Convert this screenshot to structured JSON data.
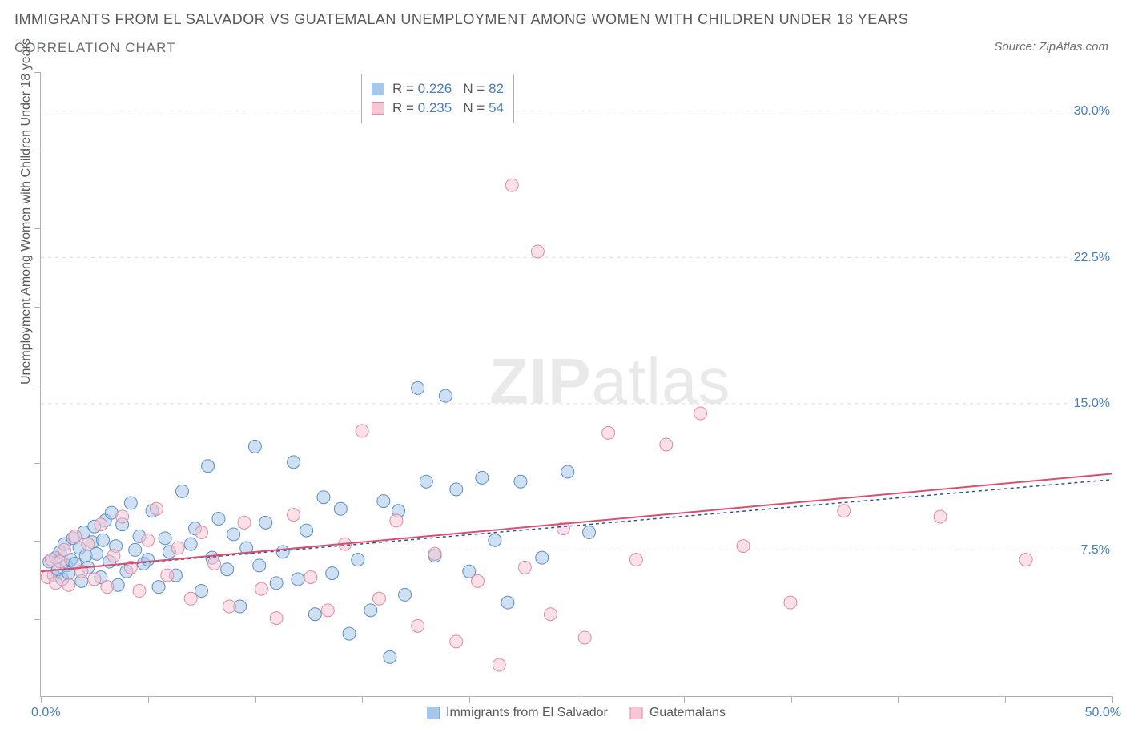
{
  "title_main": "IMMIGRANTS FROM EL SALVADOR VS GUATEMALAN UNEMPLOYMENT AMONG WOMEN WITH CHILDREN UNDER 18 YEARS",
  "title_sub": "CORRELATION CHART",
  "source_prefix": "Source: ",
  "source_name": "ZipAtlas.com",
  "y_axis_title": "Unemployment Among Women with Children Under 18 years",
  "watermark_bold": "ZIP",
  "watermark_light": "atlas",
  "chart": {
    "type": "scatter",
    "xlim": [
      0,
      50
    ],
    "ylim": [
      0,
      32
    ],
    "x_min_label": "0.0%",
    "x_max_label": "50.0%",
    "y_grid_values": [
      7.5,
      15.0,
      22.5,
      30.0
    ],
    "y_grid_labels": [
      "7.5%",
      "15.0%",
      "22.5%",
      "30.0%"
    ],
    "x_tick_values": [
      0,
      5,
      10,
      15,
      20,
      25,
      30,
      35,
      40,
      45,
      50
    ],
    "y_left_ticks": [
      4,
      8,
      12,
      16,
      20,
      24,
      28,
      32
    ],
    "background_color": "#ffffff",
    "grid_color": "#d9d9d9",
    "axis_color": "#b0b0b0",
    "marker_radius": 8,
    "marker_opacity": 0.55,
    "series": [
      {
        "id": "el_salvador",
        "legend_label": "Immigrants from El Salvador",
        "fill": "#a8c6e8",
        "stroke": "#5b8fc7",
        "trend_stroke": "#2a5599",
        "trend_dash": "4,4",
        "trend_width": 1.5,
        "R": "0.226",
        "N": "82",
        "trend_line": {
          "x1": 0,
          "y1": 6.4,
          "x2": 50,
          "y2": 11.1
        },
        "points": [
          [
            0.4,
            6.9
          ],
          [
            0.6,
            6.2
          ],
          [
            0.7,
            7.1
          ],
          [
            0.8,
            6.5
          ],
          [
            0.9,
            7.4
          ],
          [
            1.0,
            6.0
          ],
          [
            1.1,
            7.8
          ],
          [
            1.2,
            6.7
          ],
          [
            1.3,
            6.3
          ],
          [
            1.4,
            7.0
          ],
          [
            1.5,
            8.1
          ],
          [
            1.6,
            6.8
          ],
          [
            1.8,
            7.6
          ],
          [
            1.9,
            5.9
          ],
          [
            2.0,
            8.4
          ],
          [
            2.1,
            7.2
          ],
          [
            2.2,
            6.6
          ],
          [
            2.4,
            7.9
          ],
          [
            2.5,
            8.7
          ],
          [
            2.6,
            7.3
          ],
          [
            2.8,
            6.1
          ],
          [
            2.9,
            8.0
          ],
          [
            3.0,
            9.0
          ],
          [
            3.2,
            6.9
          ],
          [
            3.3,
            9.4
          ],
          [
            3.5,
            7.7
          ],
          [
            3.6,
            5.7
          ],
          [
            3.8,
            8.8
          ],
          [
            4.0,
            6.4
          ],
          [
            4.2,
            9.9
          ],
          [
            4.4,
            7.5
          ],
          [
            4.6,
            8.2
          ],
          [
            4.8,
            6.8
          ],
          [
            5.0,
            7.0
          ],
          [
            5.2,
            9.5
          ],
          [
            5.5,
            5.6
          ],
          [
            5.8,
            8.1
          ],
          [
            6.0,
            7.4
          ],
          [
            6.3,
            6.2
          ],
          [
            6.6,
            10.5
          ],
          [
            7.0,
            7.8
          ],
          [
            7.2,
            8.6
          ],
          [
            7.5,
            5.4
          ],
          [
            7.8,
            11.8
          ],
          [
            8.0,
            7.1
          ],
          [
            8.3,
            9.1
          ],
          [
            8.7,
            6.5
          ],
          [
            9.0,
            8.3
          ],
          [
            9.3,
            4.6
          ],
          [
            9.6,
            7.6
          ],
          [
            10.0,
            12.8
          ],
          [
            10.2,
            6.7
          ],
          [
            10.5,
            8.9
          ],
          [
            11.0,
            5.8
          ],
          [
            11.3,
            7.4
          ],
          [
            11.8,
            12.0
          ],
          [
            12.0,
            6.0
          ],
          [
            12.4,
            8.5
          ],
          [
            12.8,
            4.2
          ],
          [
            13.2,
            10.2
          ],
          [
            13.6,
            6.3
          ],
          [
            14.0,
            9.6
          ],
          [
            14.4,
            3.2
          ],
          [
            14.8,
            7.0
          ],
          [
            15.4,
            4.4
          ],
          [
            16.0,
            10.0
          ],
          [
            16.3,
            2.0
          ],
          [
            16.7,
            9.5
          ],
          [
            17.0,
            5.2
          ],
          [
            17.6,
            15.8
          ],
          [
            18.0,
            11.0
          ],
          [
            18.4,
            7.2
          ],
          [
            18.9,
            15.4
          ],
          [
            19.4,
            10.6
          ],
          [
            20.0,
            6.4
          ],
          [
            20.6,
            11.2
          ],
          [
            21.2,
            8.0
          ],
          [
            21.8,
            4.8
          ],
          [
            22.4,
            11.0
          ],
          [
            23.4,
            7.1
          ],
          [
            24.6,
            11.5
          ],
          [
            25.6,
            8.4
          ]
        ]
      },
      {
        "id": "guatemalan",
        "legend_label": "Guatemalans",
        "fill": "#f5c6d3",
        "stroke": "#e08aa4",
        "trend_stroke": "#d94f6e",
        "trend_dash": "none",
        "trend_width": 2,
        "R": "0.235",
        "N": "54",
        "trend_line": {
          "x1": 0,
          "y1": 6.4,
          "x2": 50,
          "y2": 11.4
        },
        "points": [
          [
            0.3,
            6.1
          ],
          [
            0.5,
            7.0
          ],
          [
            0.7,
            5.8
          ],
          [
            0.9,
            6.9
          ],
          [
            1.1,
            7.5
          ],
          [
            1.3,
            5.7
          ],
          [
            1.6,
            8.2
          ],
          [
            1.9,
            6.4
          ],
          [
            2.2,
            7.8
          ],
          [
            2.5,
            6.0
          ],
          [
            2.8,
            8.8
          ],
          [
            3.1,
            5.6
          ],
          [
            3.4,
            7.2
          ],
          [
            3.8,
            9.2
          ],
          [
            4.2,
            6.6
          ],
          [
            4.6,
            5.4
          ],
          [
            5.0,
            8.0
          ],
          [
            5.4,
            9.6
          ],
          [
            5.9,
            6.2
          ],
          [
            6.4,
            7.6
          ],
          [
            7.0,
            5.0
          ],
          [
            7.5,
            8.4
          ],
          [
            8.1,
            6.8
          ],
          [
            8.8,
            4.6
          ],
          [
            9.5,
            8.9
          ],
          [
            10.3,
            5.5
          ],
          [
            11.0,
            4.0
          ],
          [
            11.8,
            9.3
          ],
          [
            12.6,
            6.1
          ],
          [
            13.4,
            4.4
          ],
          [
            14.2,
            7.8
          ],
          [
            15.0,
            13.6
          ],
          [
            15.8,
            5.0
          ],
          [
            16.6,
            9.0
          ],
          [
            17.6,
            3.6
          ],
          [
            18.4,
            7.3
          ],
          [
            19.4,
            2.8
          ],
          [
            20.4,
            5.9
          ],
          [
            21.4,
            1.6
          ],
          [
            22.0,
            26.2
          ],
          [
            22.6,
            6.6
          ],
          [
            23.2,
            22.8
          ],
          [
            23.8,
            4.2
          ],
          [
            24.4,
            8.6
          ],
          [
            25.4,
            3.0
          ],
          [
            26.5,
            13.5
          ],
          [
            27.8,
            7.0
          ],
          [
            29.2,
            12.9
          ],
          [
            30.8,
            14.5
          ],
          [
            32.8,
            7.7
          ],
          [
            35.0,
            4.8
          ],
          [
            37.5,
            9.5
          ],
          [
            42.0,
            9.2
          ],
          [
            46.0,
            7.0
          ]
        ]
      }
    ]
  },
  "stats_box": {
    "r_label": "R =",
    "n_label": "N ="
  }
}
